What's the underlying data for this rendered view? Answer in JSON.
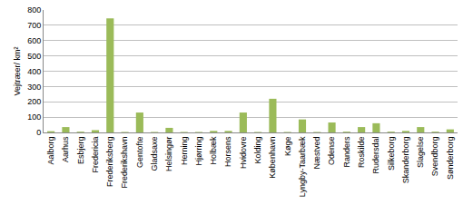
{
  "chart_data": {
    "type": "bar",
    "y_label": "Vejtræer/ km²",
    "categories": [
      "Aalborg",
      "Aarhus",
      "Esbjerg",
      "Fredericia",
      "Frederiksberg",
      "Frederikshavn",
      "Gentofte",
      "Gladsaxe",
      "Helsingør",
      "Herning",
      "Hjørring",
      "Holbæk",
      "Horsens",
      "Hvidovre",
      "Kolding",
      "København",
      "Køge",
      "Lyngby-Taarbæk",
      "Næstved",
      "Odense",
      "Randers",
      "Roskilde",
      "Rudersdal",
      "Silkeborg",
      "Skanderborg",
      "Slagelse",
      "Svendborg",
      "Sønderborg"
    ],
    "values": [
      8,
      35,
      5,
      15,
      745,
      3,
      130,
      3,
      30,
      3,
      3,
      10,
      10,
      130,
      3,
      220,
      3,
      85,
      3,
      65,
      5,
      35,
      60,
      5,
      10,
      35,
      5,
      20
    ],
    "color": "#9bbb59",
    "ylim": [
      0,
      800
    ],
    "yticks": [
      0,
      100,
      200,
      300,
      400,
      500,
      600,
      700,
      800
    ],
    "grid": true
  }
}
